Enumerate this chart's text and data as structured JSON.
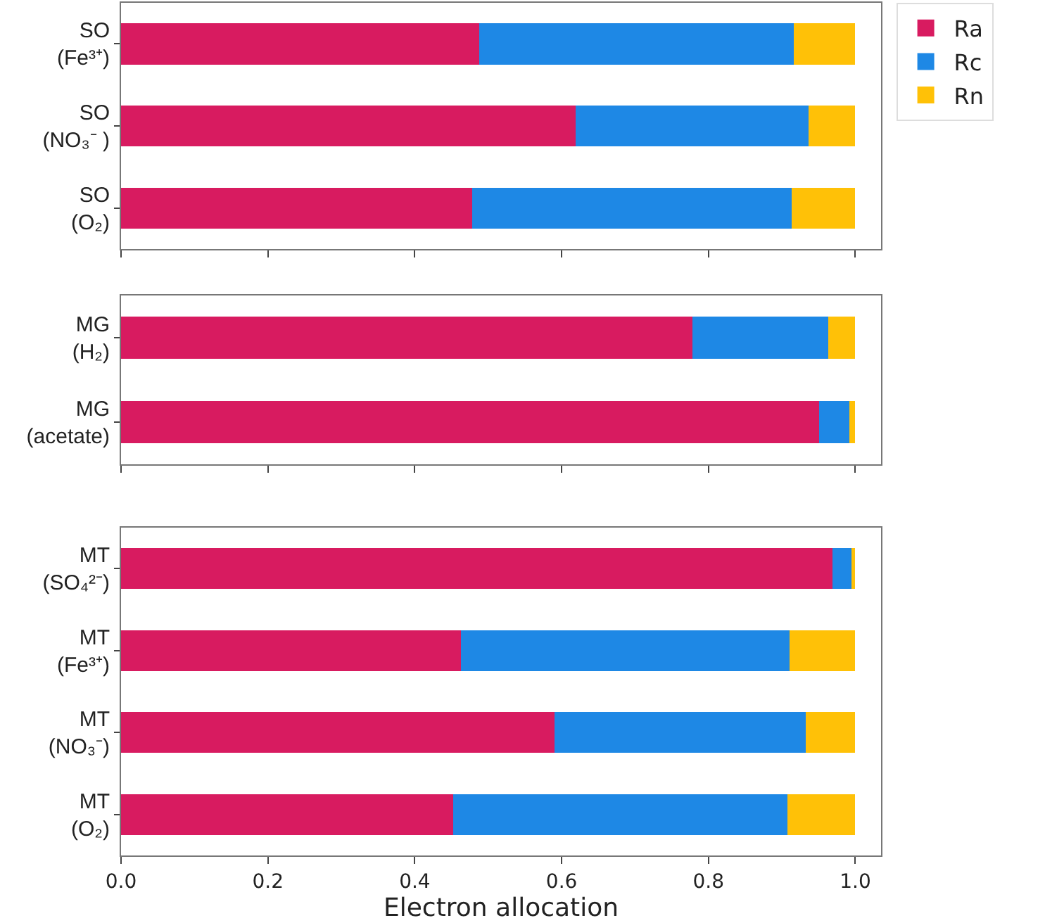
{
  "chart_data": [
    {
      "type": "bar",
      "orientation": "horizontal",
      "stacked": true,
      "categories": [
        "SO\n(Fe³⁺)",
        "SO\n(NO₃⁻ )",
        "SO\n(O₂)"
      ],
      "xlim": [
        0,
        1.035
      ],
      "xticks": [
        0.0,
        0.2,
        0.4,
        0.6,
        0.8,
        1.0
      ],
      "tick_labels": "y",
      "legend": "right",
      "series": [
        {
          "name": "Ra",
          "color": "#d81b60",
          "values": [
            0.488,
            0.619,
            0.478
          ]
        },
        {
          "name": "Rc",
          "color": "#1e88e5",
          "values": [
            0.428,
            0.317,
            0.435
          ]
        },
        {
          "name": "Rn",
          "color": "#ffc107",
          "values": [
            0.084,
            0.064,
            0.087
          ]
        }
      ]
    },
    {
      "type": "bar",
      "orientation": "horizontal",
      "stacked": true,
      "categories": [
        "MG\n(H₂)",
        "MG\n(acetate)"
      ],
      "xlim": [
        0,
        1.035
      ],
      "xticks": [
        0.0,
        0.2,
        0.4,
        0.6,
        0.8,
        1.0
      ],
      "tick_labels": "y",
      "series": [
        {
          "color": "#d81b60",
          "values": [
            0.778,
            0.951
          ]
        },
        {
          "color": "#1e88e5",
          "values": [
            0.185,
            0.041
          ]
        },
        {
          "color": "#ffc107",
          "values": [
            0.037,
            0.008
          ]
        }
      ]
    },
    {
      "type": "bar",
      "orientation": "horizontal",
      "stacked": true,
      "categories": [
        "MT\n(SO₄²⁻)",
        "MT\n(Fe³⁺)",
        "MT\n(NO₃⁻)",
        "MT\n(O₂)"
      ],
      "xlim": [
        0,
        1.035
      ],
      "xticks": [
        {
          "value": 0,
          "label": "0.0"
        },
        0.2,
        0.4,
        0.6,
        0.8,
        {
          "value": 1,
          "label": "1.0"
        }
      ],
      "xlabel": "Electron allocation",
      "series": [
        {
          "color": "#d81b60",
          "values": [
            0.969,
            0.463,
            0.59,
            0.452
          ]
        },
        {
          "color": "#1e88e5",
          "values": [
            0.026,
            0.447,
            0.342,
            0.456
          ]
        },
        {
          "color": "#ffc107",
          "values": [
            0.005,
            0.09,
            0.068,
            0.092
          ]
        }
      ]
    }
  ]
}
